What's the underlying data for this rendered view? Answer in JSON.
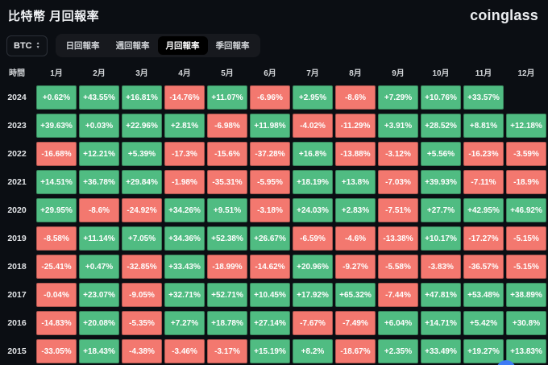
{
  "header": {
    "title": "比特幣 月回報率",
    "logo": "coinglass"
  },
  "controls": {
    "coin_selector": {
      "value": "BTC",
      "icon": "updown-sorter-icon"
    },
    "tabs": [
      {
        "label": "日回報率",
        "selected": false
      },
      {
        "label": "週回報率",
        "selected": false
      },
      {
        "label": "月回報率",
        "selected": true
      },
      {
        "label": "季回報率",
        "selected": false
      }
    ]
  },
  "table": {
    "time_header": "時間",
    "month_headers": [
      "1月",
      "2月",
      "3月",
      "4月",
      "5月",
      "6月",
      "7月",
      "8月",
      "9月",
      "10月",
      "11月",
      "12月"
    ],
    "rows": [
      {
        "year": "2024",
        "values": [
          "+0.62%",
          "+43.55%",
          "+16.81%",
          "-14.76%",
          "+11.07%",
          "-6.96%",
          "+2.95%",
          "-8.6%",
          "+7.29%",
          "+10.76%",
          "+33.57%",
          null
        ]
      },
      {
        "year": "2023",
        "values": [
          "+39.63%",
          "+0.03%",
          "+22.96%",
          "+2.81%",
          "-6.98%",
          "+11.98%",
          "-4.02%",
          "-11.29%",
          "+3.91%",
          "+28.52%",
          "+8.81%",
          "+12.18%"
        ]
      },
      {
        "year": "2022",
        "values": [
          "-16.68%",
          "+12.21%",
          "+5.39%",
          "-17.3%",
          "-15.6%",
          "-37.28%",
          "+16.8%",
          "-13.88%",
          "-3.12%",
          "+5.56%",
          "-16.23%",
          "-3.59%"
        ]
      },
      {
        "year": "2021",
        "values": [
          "+14.51%",
          "+36.78%",
          "+29.84%",
          "-1.98%",
          "-35.31%",
          "-5.95%",
          "+18.19%",
          "+13.8%",
          "-7.03%",
          "+39.93%",
          "-7.11%",
          "-18.9%"
        ]
      },
      {
        "year": "2020",
        "values": [
          "+29.95%",
          "-8.6%",
          "-24.92%",
          "+34.26%",
          "+9.51%",
          "-3.18%",
          "+24.03%",
          "+2.83%",
          "-7.51%",
          "+27.7%",
          "+42.95%",
          "+46.92%"
        ]
      },
      {
        "year": "2019",
        "values": [
          "-8.58%",
          "+11.14%",
          "+7.05%",
          "+34.36%",
          "+52.38%",
          "+26.67%",
          "-6.59%",
          "-4.6%",
          "-13.38%",
          "+10.17%",
          "-17.27%",
          "-5.15%"
        ]
      },
      {
        "year": "2018",
        "values": [
          "-25.41%",
          "+0.47%",
          "-32.85%",
          "+33.43%",
          "-18.99%",
          "-14.62%",
          "+20.96%",
          "-9.27%",
          "-5.58%",
          "-3.83%",
          "-36.57%",
          "-5.15%"
        ]
      },
      {
        "year": "2017",
        "values": [
          "-0.04%",
          "+23.07%",
          "-9.05%",
          "+32.71%",
          "+52.71%",
          "+10.45%",
          "+17.92%",
          "+65.32%",
          "-7.44%",
          "+47.81%",
          "+53.48%",
          "+38.89%"
        ]
      },
      {
        "year": "2016",
        "values": [
          "-14.83%",
          "+20.08%",
          "-5.35%",
          "+7.27%",
          "+18.78%",
          "+27.14%",
          "-7.67%",
          "-7.49%",
          "+6.04%",
          "+14.71%",
          "+5.42%",
          "+30.8%"
        ]
      },
      {
        "year": "2015",
        "values": [
          "-33.05%",
          "+18.43%",
          "-4.38%",
          "-3.46%",
          "-3.17%",
          "+15.19%",
          "+8.2%",
          "-18.67%",
          "+2.35%",
          "+33.49%",
          "+19.27%",
          "+13.83%"
        ]
      }
    ]
  },
  "colors": {
    "positive": "#50BC82",
    "negative": "#F3786F",
    "background": "#0b0e13",
    "selected_tab_bg": "#000000",
    "chat_widget": "#3E7BF5"
  }
}
